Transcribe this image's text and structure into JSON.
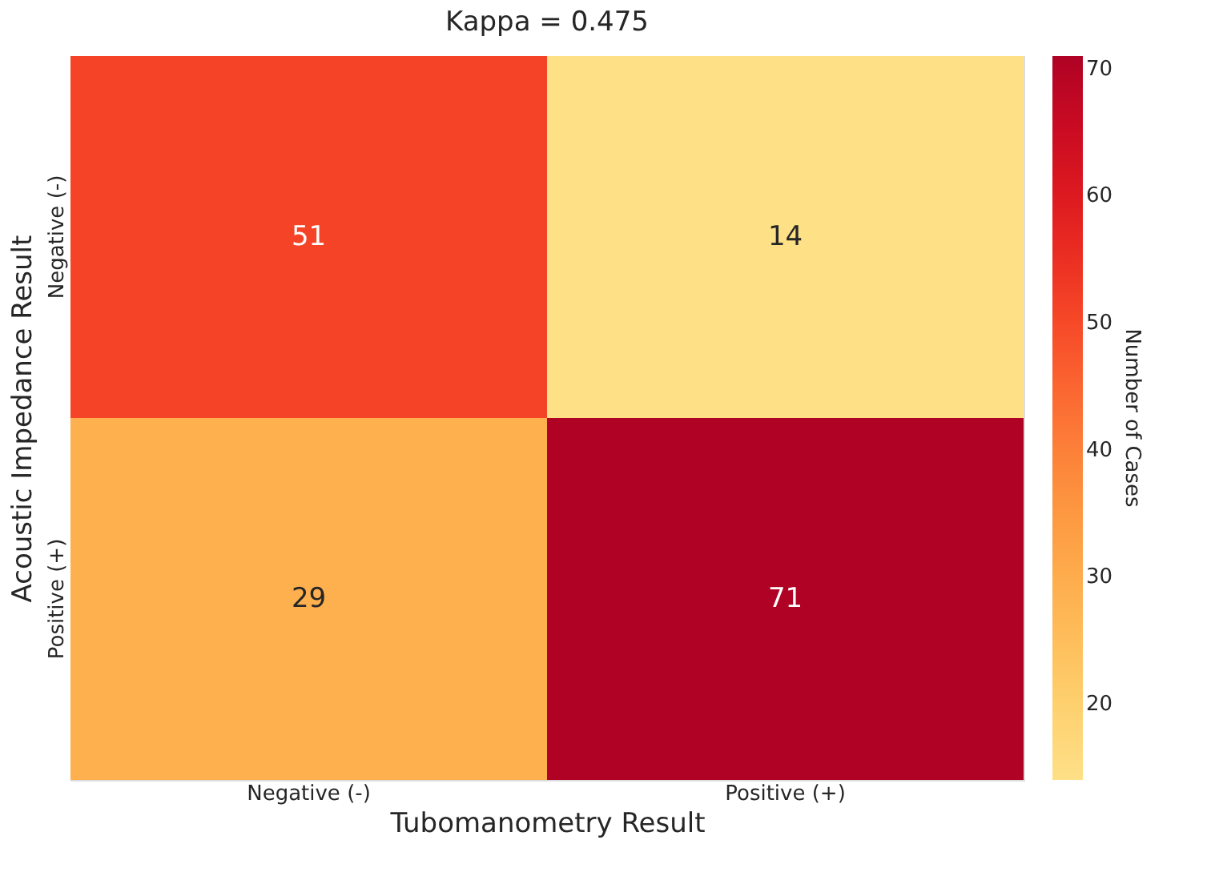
{
  "chart_data": {
    "type": "heatmap",
    "title": "Kappa = 0.475",
    "xlabel": "Tubomanometry Result",
    "ylabel": "Acoustic Impedance Result",
    "clabel": "Number of Cases",
    "categories": [
      "Negative (-)",
      "Positive (+)"
    ],
    "y_categories": [
      "Negative (-)",
      "Positive (+)"
    ],
    "cells": [
      [
        51,
        14
      ],
      [
        29,
        71
      ]
    ],
    "data_labels": true,
    "clim": [
      14,
      71
    ],
    "cticks": [
      20,
      30,
      40,
      50,
      60,
      70
    ]
  }
}
